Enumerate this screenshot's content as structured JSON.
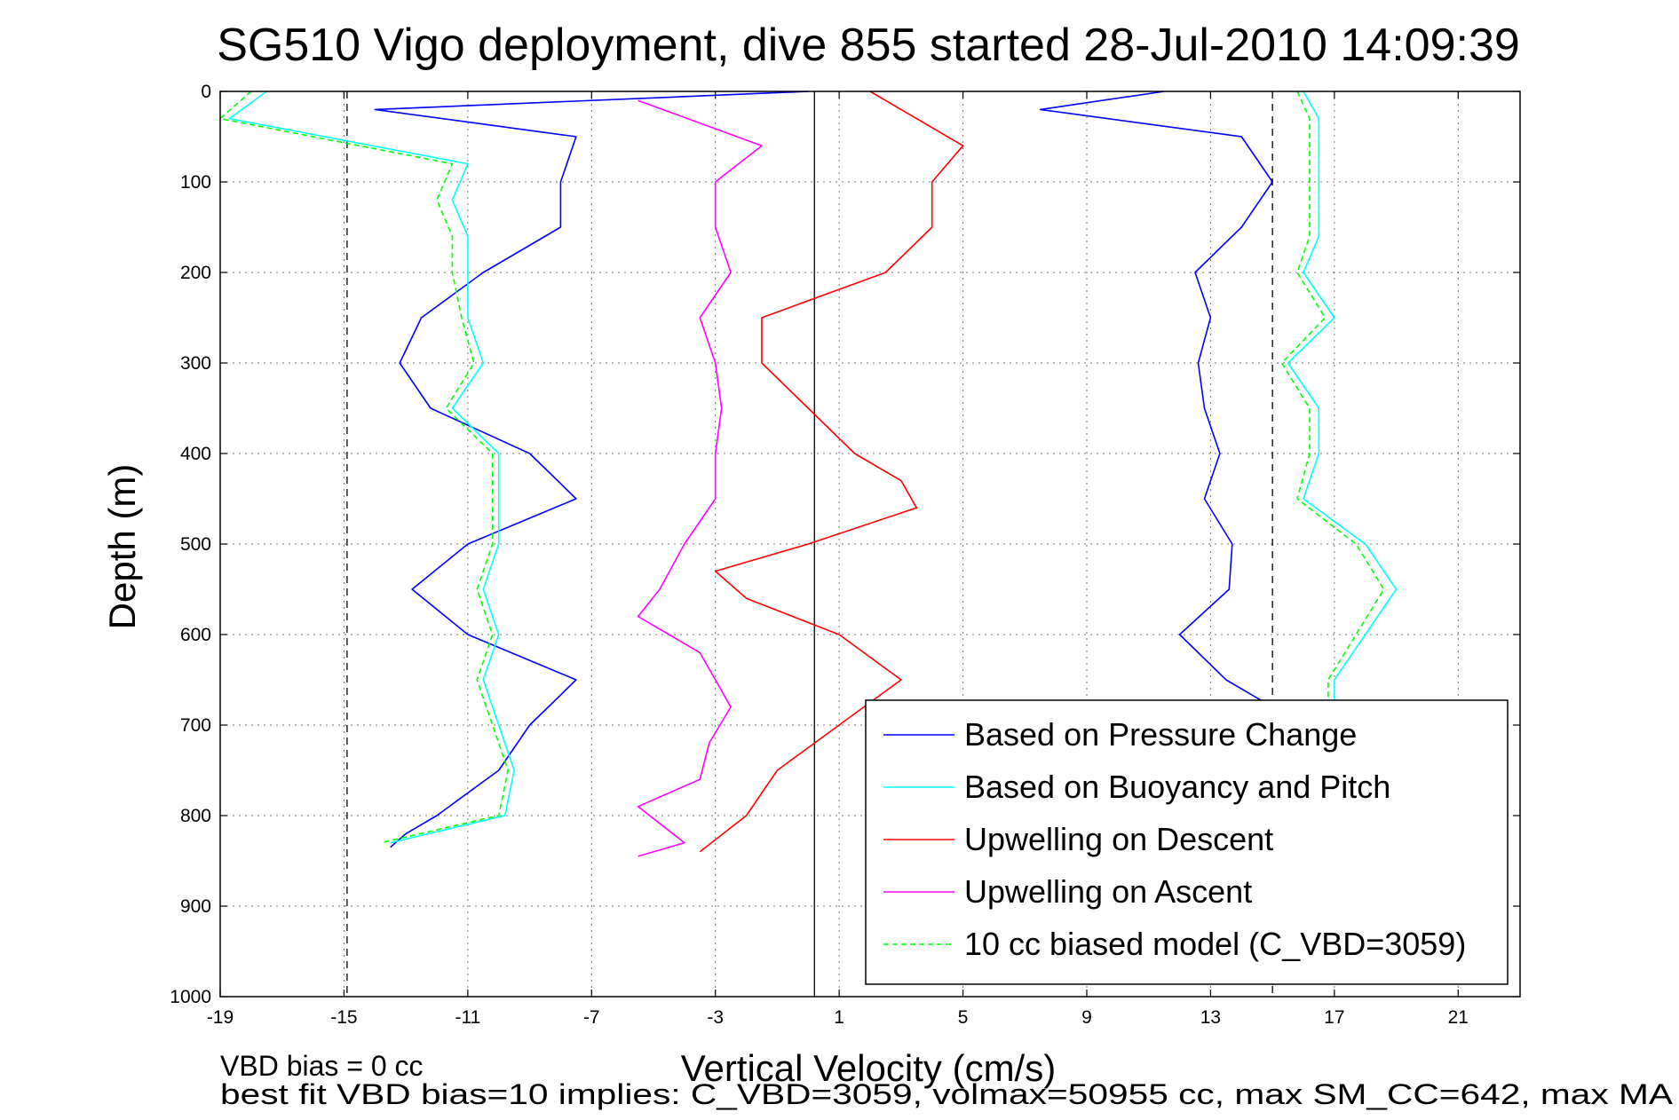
{
  "chart_data": {
    "type": "line",
    "title": "SG510 Vigo deployment, dive 855 started 28-Jul-2010 14:09:39",
    "xlabel": "Vertical Velocity (cm/s)",
    "ylabel": "Depth (m)",
    "xlim": [
      -19,
      23
    ],
    "ylim": [
      0,
      1000
    ],
    "y_reversed": true,
    "grid": true,
    "xticks": [
      -19,
      -15,
      -11,
      -7,
      -3,
      1,
      5,
      9,
      13,
      17,
      21
    ],
    "yticks": [
      0,
      100,
      200,
      300,
      400,
      500,
      600,
      700,
      800,
      900,
      1000
    ],
    "vertical_refs": [
      {
        "x": -14.9,
        "style": "dashed",
        "color": "#000000"
      },
      {
        "x": 0.2,
        "style": "solid",
        "color": "#000000"
      },
      {
        "x": 15.0,
        "style": "dashed",
        "color": "#000000"
      }
    ],
    "legend_position": "bottom-right",
    "series": [
      {
        "name": "Based on Pressure Change",
        "color": "#0000ff",
        "style": "solid",
        "depth": [
          0,
          20,
          50,
          100,
          150,
          200,
          250,
          300,
          350,
          400,
          450,
          500,
          550,
          600,
          650,
          700,
          750,
          800,
          820,
          835
        ],
        "velocity": [
          0,
          -14,
          -7.5,
          -8,
          -8,
          -10.5,
          -12.5,
          -13.2,
          -12.2,
          -9,
          -7.5,
          -11,
          -12.8,
          -11,
          -7.5,
          -9,
          -10,
          -12,
          -13,
          -13.5
        ]
      },
      {
        "name": "Based on Pressure Change",
        "color": "#0000ff",
        "style": "solid",
        "depth": [
          0,
          20,
          50,
          100,
          150,
          200,
          250,
          300,
          350,
          400,
          450,
          500,
          550,
          600,
          650,
          680
        ],
        "velocity": [
          11.5,
          7.5,
          14,
          15,
          14,
          12.5,
          13,
          12.6,
          12.8,
          13.3,
          12.8,
          13.7,
          13.6,
          12,
          13.5,
          15
        ]
      },
      {
        "name": "Based on Buoyancy and Pitch",
        "color": "#00ffff",
        "style": "solid",
        "depth": [
          0,
          30,
          80,
          120,
          160,
          200,
          250,
          300,
          350,
          400,
          450,
          500,
          550,
          600,
          650,
          700,
          750,
          800,
          830
        ],
        "velocity": [
          -17.5,
          -18.7,
          -11,
          -11.5,
          -11,
          -11,
          -11,
          -10.5,
          -11.5,
          -10,
          -10,
          -10,
          -10.5,
          -10,
          -10.5,
          -10,
          -9.5,
          -9.8,
          -13.5
        ]
      },
      {
        "name": "Based on Buoyancy and Pitch",
        "color": "#00ffff",
        "style": "solid",
        "depth": [
          0,
          30,
          80,
          120,
          160,
          200,
          250,
          300,
          350,
          400,
          450,
          500,
          550,
          600,
          650,
          700
        ],
        "velocity": [
          16,
          16.5,
          16.5,
          16.5,
          16.5,
          16,
          17,
          15.5,
          16.5,
          16.5,
          16,
          18,
          19,
          18,
          17,
          17
        ]
      },
      {
        "name": "Upwelling on Descent",
        "color": "#ff0000",
        "style": "solid",
        "depth": [
          0,
          20,
          60,
          100,
          150,
          200,
          250,
          300,
          350,
          400,
          430,
          460,
          500,
          530,
          560,
          600,
          650,
          700,
          750,
          800,
          840
        ],
        "velocity": [
          2,
          3,
          5,
          4,
          4,
          2.5,
          -1.5,
          -1.5,
          0,
          1.5,
          3,
          3.5,
          0,
          -3,
          -2,
          1,
          3,
          1,
          -1,
          -2,
          -3.5
        ]
      },
      {
        "name": "Upwelling on Ascent",
        "color": "#ff00ff",
        "style": "solid",
        "depth": [
          10,
          60,
          100,
          150,
          200,
          250,
          300,
          350,
          400,
          450,
          500,
          550,
          580,
          620,
          680,
          720,
          760,
          790,
          830,
          845
        ],
        "velocity": [
          -5.5,
          -1.5,
          -3,
          -3,
          -2.5,
          -3.5,
          -3,
          -2.8,
          -3,
          -3,
          -4,
          -4.8,
          -5.5,
          -3.5,
          -2.5,
          -3.2,
          -3.5,
          -5.5,
          -4,
          -5.5
        ]
      },
      {
        "name": "10 cc biased model (C_VBD=3059)",
        "color": "#00ff00",
        "style": "dashed",
        "depth": [
          0,
          30,
          80,
          120,
          160,
          200,
          250,
          300,
          350,
          400,
          450,
          500,
          550,
          600,
          650,
          700,
          750,
          800,
          830
        ],
        "velocity": [
          -18,
          -19,
          -11.5,
          -12,
          -11.5,
          -11.5,
          -11.2,
          -10.8,
          -11.7,
          -10.2,
          -10.2,
          -10.2,
          -10.7,
          -10.2,
          -10.7,
          -10.2,
          -9.7,
          -10,
          -13.8
        ]
      },
      {
        "name": "10 cc biased model (C_VBD=3059)",
        "color": "#00ff00",
        "style": "dashed",
        "depth": [
          0,
          30,
          80,
          120,
          160,
          200,
          250,
          300,
          350,
          400,
          450,
          500,
          550,
          600,
          650,
          700
        ],
        "velocity": [
          15.8,
          16.2,
          16.2,
          16.2,
          16.2,
          15.8,
          16.7,
          15.3,
          16.2,
          16.2,
          15.8,
          17.7,
          18.6,
          17.7,
          16.8,
          16.8
        ]
      }
    ],
    "legend": [
      {
        "label": "Based on Pressure Change",
        "color": "#0000ff",
        "style": "solid"
      },
      {
        "label": "Based on Buoyancy and Pitch",
        "color": "#00ffff",
        "style": "solid"
      },
      {
        "label": "Upwelling on Descent",
        "color": "#ff0000",
        "style": "solid"
      },
      {
        "label": "Upwelling on Ascent",
        "color": "#ff00ff",
        "style": "solid"
      },
      {
        "label": "10 cc biased model (C_VBD=3059)",
        "color": "#00ff00",
        "style": "dashed"
      }
    ],
    "annotations": [
      "VBD bias = 0 cc",
      "best fit VBD bias=10 implies: C_VBD=3059, volmax=50955 cc, max SM_CC=642, max MA"
    ]
  }
}
